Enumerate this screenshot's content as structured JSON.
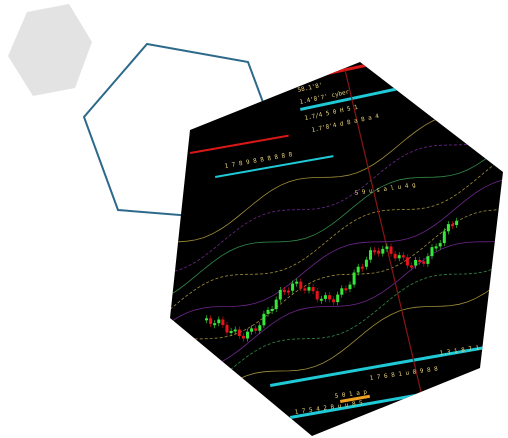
{
  "decor": {
    "hex_fill_color": "#e3e3e3",
    "hex_outline_color": "#2d6a8a"
  },
  "chart_image": {
    "background_color": "#000000",
    "up_candle_color": "#35e83a",
    "down_candle_color": "#e8141c",
    "band_color_gold": "#c9b24a",
    "band_color_purple": "#8a2fb0",
    "band_color_green": "#3fae5a",
    "level_color_cyan": "#1fc9d6",
    "level_color_red": "#d81818",
    "vertical_line_color": "#8a1414",
    "labels": [
      "58.1'8'",
      "1.4'8'7' cyber",
      "1.7/4 5 0 H 5 1",
      "1.7'8'4 d 8 a 8 a 4",
      "1 7 8 9 8 8 8 8 8 8",
      "5 9 u s a l u 4 g",
      "1.3 1 8 7 1 8 8 8 8",
      "1 7 6 8 1 u 8 9 8 8",
      "5 0 1 a p",
      "1 7 5 4 2 8 u u 8 5"
    ]
  }
}
